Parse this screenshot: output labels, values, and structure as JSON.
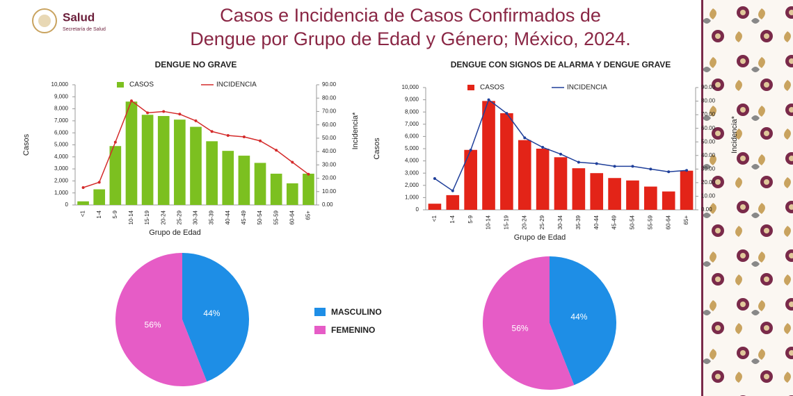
{
  "header": {
    "logo_title": "Salud",
    "logo_subtitle": "Secretaría de Salud",
    "title_lines": [
      "Casos e Incidencia de Casos Confirmados de",
      "Dengue por Grupo de Edad y Género; México, 2024."
    ]
  },
  "legend": {
    "labels": [
      "MASCULINO",
      "FEMENINO"
    ],
    "colors": [
      "#1e8ee6",
      "#e65cc6"
    ]
  },
  "chart_data": [
    {
      "type": "combo",
      "title": "DENGUE NO GRAVE",
      "x_label": "Grupo de Edad",
      "y_label": "Casos",
      "y2_label": "Incidencia*",
      "categories": [
        "<1",
        "1-4",
        "5-9",
        "10-14",
        "15-19",
        "20-24",
        "25-29",
        "30-34",
        "35-39",
        "40-44",
        "45-49",
        "50-54",
        "55-59",
        "60-64",
        "65+"
      ],
      "series": [
        {
          "name": "CASOS",
          "type": "bar",
          "color": "#7cc020",
          "values": [
            300,
            1300,
            4900,
            8600,
            7500,
            7400,
            7100,
            6500,
            5300,
            4500,
            4100,
            3500,
            2600,
            1800,
            2600
          ]
        },
        {
          "name": "INCIDENCIA",
          "type": "line",
          "axis": "y2",
          "color": "#d42a2a",
          "values": [
            13,
            17,
            47,
            78,
            69,
            70,
            68,
            63,
            55,
            52,
            51,
            48,
            41,
            32,
            23
          ]
        }
      ],
      "ylim": [
        0,
        10000
      ],
      "yticks": [
        0,
        {
          "value": 1000,
          "label": "1,000"
        },
        {
          "value": 2000,
          "label": "2,000"
        },
        {
          "value": 3000,
          "label": "3,000"
        },
        {
          "value": 4000,
          "label": "4,000"
        },
        {
          "value": 5000,
          "label": "5,000"
        },
        {
          "value": 6000,
          "label": "6,000"
        },
        {
          "value": 7000,
          "label": "7,000"
        },
        {
          "value": 8000,
          "label": "8,000"
        },
        {
          "value": 9000,
          "label": "9,000"
        },
        {
          "value": 10000,
          "label": "10,000"
        }
      ],
      "y2lim": [
        0,
        90
      ],
      "y2ticks": [
        {
          "value": 0,
          "label": "0.00"
        },
        {
          "value": 10,
          "label": "10.00"
        },
        {
          "value": 20,
          "label": "20.00"
        },
        {
          "value": 30,
          "label": "30.00"
        },
        {
          "value": 40,
          "label": "40.00"
        },
        {
          "value": 50,
          "label": "50.00"
        },
        {
          "value": 60,
          "label": "60.00"
        },
        {
          "value": 70,
          "label": "70.00"
        },
        {
          "value": 80,
          "label": "80.00"
        },
        {
          "value": 90,
          "label": "90.00"
        }
      ]
    },
    {
      "type": "combo",
      "title": "DENGUE CON SIGNOS DE ALARMA Y DENGUE GRAVE",
      "x_label": "Grupo de Edad",
      "y_label": "Casos",
      "y2_label": "Incidencia*",
      "categories": [
        "<1",
        "1-4",
        "5-9",
        "10-14",
        "15-19",
        "20-24",
        "25-29",
        "30-34",
        "35-39",
        "40-44",
        "45-49",
        "50-54",
        "55-59",
        "60-64",
        "65+"
      ],
      "series": [
        {
          "name": "CASOS",
          "type": "bar",
          "color": "#e32418",
          "values": [
            500,
            1200,
            4900,
            8900,
            7900,
            5700,
            5000,
            4300,
            3400,
            3000,
            2600,
            2400,
            1900,
            1500,
            3200
          ]
        },
        {
          "name": "INCIDENCIA",
          "type": "line",
          "axis": "y2",
          "color": "#1f3f9a",
          "values": [
            23,
            14,
            44,
            81,
            71,
            53,
            46,
            41,
            35,
            34,
            32,
            32,
            30,
            28,
            29
          ]
        }
      ],
      "ylim": [
        0,
        10000
      ],
      "yticks": [
        0,
        {
          "value": 1000,
          "label": "1,000"
        },
        {
          "value": 2000,
          "label": "2,000"
        },
        {
          "value": 3000,
          "label": "3,000"
        },
        {
          "value": 4000,
          "label": "4,000"
        },
        {
          "value": 5000,
          "label": "5,000"
        },
        {
          "value": 6000,
          "label": "6,000"
        },
        {
          "value": 7000,
          "label": "7,000"
        },
        {
          "value": 8000,
          "label": "8,000"
        },
        {
          "value": 9000,
          "label": "9,000"
        },
        {
          "value": 10000,
          "label": "10,000"
        }
      ],
      "y2lim": [
        0,
        90
      ],
      "y2ticks": [
        {
          "value": 0,
          "label": "0.00"
        },
        {
          "value": 10,
          "label": "10.00"
        },
        {
          "value": 20,
          "label": "20.00"
        },
        {
          "value": 30,
          "label": "30.00"
        },
        {
          "value": 40,
          "label": "40.00"
        },
        {
          "value": 50,
          "label": "50.00"
        },
        {
          "value": 60,
          "label": "60.00"
        },
        {
          "value": 70,
          "label": "70.00"
        },
        {
          "value": 80,
          "label": "80.00"
        },
        {
          "value": 90,
          "label": "90.00"
        }
      ]
    },
    {
      "type": "pie",
      "values": [
        44,
        56
      ],
      "value_labels": [
        "44%",
        "56%"
      ]
    },
    {
      "type": "pie",
      "values": [
        44,
        56
      ],
      "value_labels": [
        "44%",
        "56%"
      ]
    }
  ]
}
